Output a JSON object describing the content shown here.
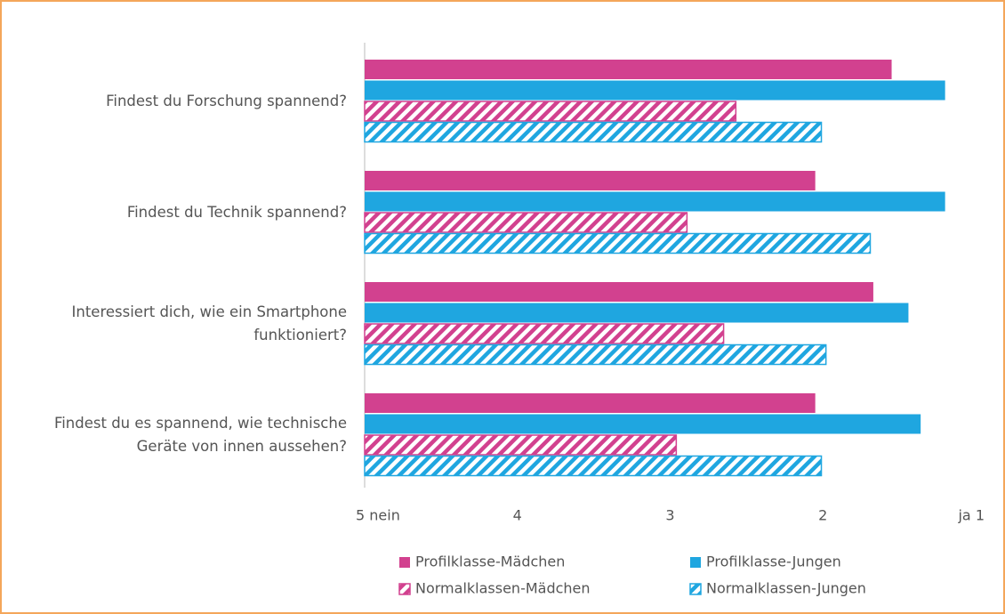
{
  "chart_data": {
    "type": "barh",
    "categories": [
      "Findest du Forschung spannend?",
      "Findest du Technik spannend?",
      "Interessiert dich, wie ein Smartphone funktioniert?",
      "Findest du es spannend, wie technische Geräte von innen aussehen?"
    ],
    "series": [
      {
        "name": "Profilklasse-Mädchen",
        "color": "#d2418f",
        "hatch": false,
        "values": [
          1.55,
          2.05,
          1.67,
          2.05
        ]
      },
      {
        "name": "Profilklasse-Jungen",
        "color": "#1fa6e0",
        "hatch": false,
        "values": [
          1.2,
          1.2,
          1.44,
          1.36
        ]
      },
      {
        "name": "Normalklassen-Mädchen",
        "color": "#d2418f",
        "hatch": true,
        "values": [
          2.57,
          2.89,
          2.65,
          2.96
        ]
      },
      {
        "name": "Normalklassen-Jungen",
        "color": "#1fa6e0",
        "hatch": true,
        "values": [
          2.01,
          1.69,
          1.98,
          2.01
        ]
      }
    ],
    "xlim": [
      5,
      1
    ],
    "xticks": [
      {
        "value": 5,
        "label": "5 nein"
      },
      4,
      3,
      2,
      {
        "value": 1,
        "label": "ja  1"
      }
    ],
    "legend": "bottom"
  }
}
